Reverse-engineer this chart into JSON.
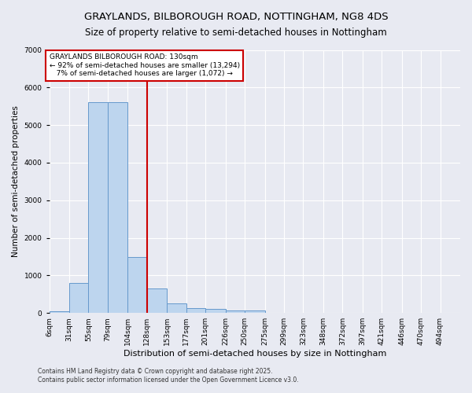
{
  "title": "GRAYLANDS, BILBOROUGH ROAD, NOTTINGHAM, NG8 4DS",
  "subtitle": "Size of property relative to semi-detached houses in Nottingham",
  "xlabel": "Distribution of semi-detached houses by size in Nottingham",
  "ylabel": "Number of semi-detached properties",
  "bar_color": "#bdd5ee",
  "bar_edge_color": "#6699cc",
  "background_color": "#e8eaf2",
  "grid_color": "#ffffff",
  "vline_value": 128,
  "vline_color": "#cc0000",
  "bin_labels": [
    "6sqm",
    "31sqm",
    "55sqm",
    "79sqm",
    "104sqm",
    "128sqm",
    "153sqm",
    "177sqm",
    "201sqm",
    "226sqm",
    "250sqm",
    "275sqm",
    "299sqm",
    "323sqm",
    "348sqm",
    "372sqm",
    "397sqm",
    "421sqm",
    "446sqm",
    "470sqm",
    "494sqm"
  ],
  "bin_edges": [
    6,
    31,
    55,
    79,
    104,
    128,
    153,
    177,
    201,
    226,
    250,
    275,
    299,
    323,
    348,
    372,
    397,
    421,
    446,
    470,
    494,
    519
  ],
  "bar_heights": [
    50,
    800,
    5600,
    5600,
    1480,
    650,
    260,
    130,
    100,
    65,
    60,
    0,
    0,
    0,
    0,
    0,
    0,
    0,
    0,
    0,
    0
  ],
  "annotation_line1": "GRAYLANDS BILBOROUGH ROAD: 130sqm",
  "annotation_line2": "← 92% of semi-detached houses are smaller (13,294)",
  "annotation_line3": "   7% of semi-detached houses are larger (1,072) →",
  "annotation_box_color": "#ffffff",
  "annotation_edge_color": "#cc0000",
  "footnote1": "Contains HM Land Registry data © Crown copyright and database right 2025.",
  "footnote2": "Contains public sector information licensed under the Open Government Licence v3.0.",
  "ylim": [
    0,
    7000
  ],
  "title_fontsize": 9.5,
  "subtitle_fontsize": 8.5,
  "tick_fontsize": 6.5,
  "ylabel_fontsize": 7.5,
  "xlabel_fontsize": 8,
  "footnote_fontsize": 5.5,
  "annotation_fontsize": 6.5
}
